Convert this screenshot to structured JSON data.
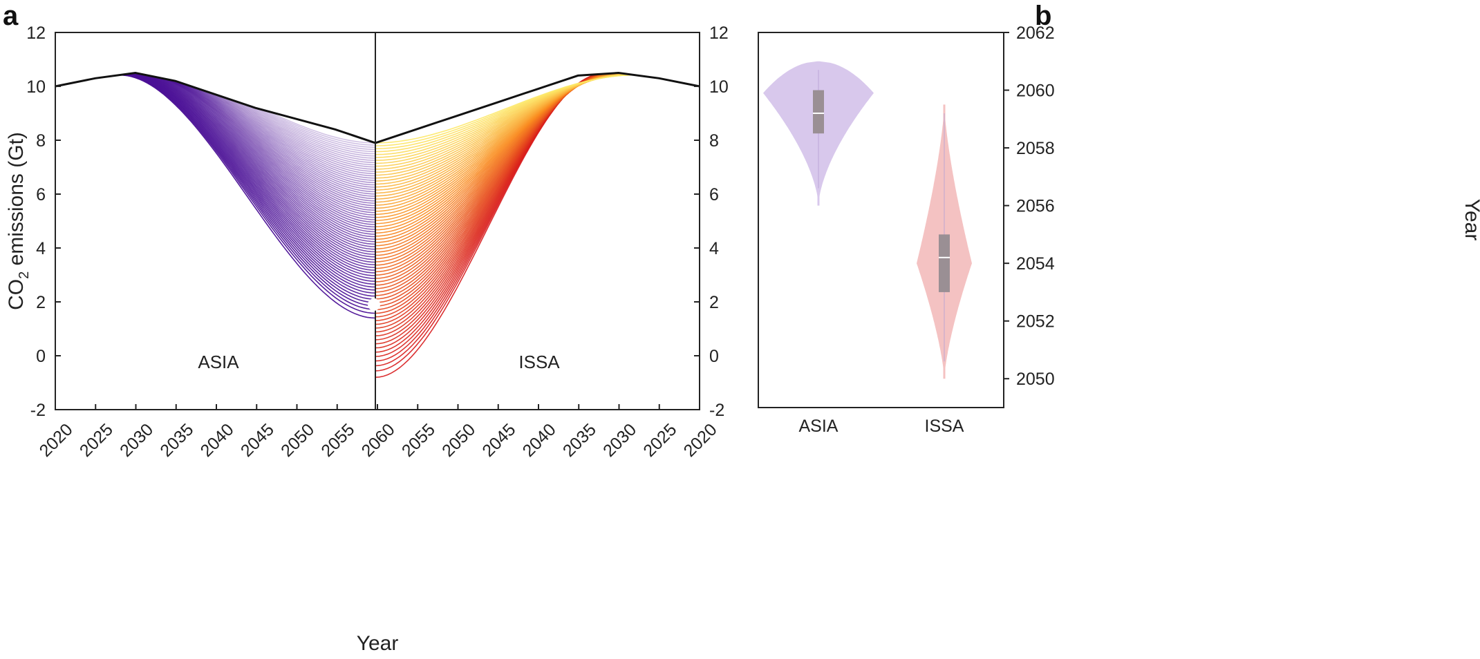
{
  "chart_data": [
    {
      "panel": "a",
      "type": "line",
      "ylabel": "CO2 emissions (Gt)",
      "ylabel_main": "CO",
      "ylabel_sub": "2",
      "ylabel_tail": " emissions (Gt)",
      "xlabel": "Year",
      "ylim": [
        -2,
        12
      ],
      "yticks": [
        "-2",
        "0",
        "2",
        "4",
        "6",
        "8",
        "10",
        "12"
      ],
      "xticks": [
        "2020",
        "2025",
        "2030",
        "2035",
        "2040",
        "2045",
        "2050",
        "2055",
        "2060",
        "2055",
        "2050",
        "2045",
        "2040",
        "2035",
        "2030",
        "2025",
        "2020"
      ],
      "left_region": {
        "label": "ASIA",
        "color": "#4b1096",
        "baseline": {
          "x": [
            2020,
            2025,
            2030,
            2035,
            2040,
            2045,
            2050,
            2055,
            2060
          ],
          "y": [
            10.0,
            10.3,
            10.5,
            10.2,
            9.7,
            9.2,
            8.8,
            8.4,
            7.9
          ]
        },
        "scenario_range_2060": [
          1.4,
          7.9
        ],
        "peak_year_range": [
          2028,
          2032
        ],
        "marker": {
          "x": 2060,
          "y": 1.9
        }
      },
      "right_region": {
        "label": "ISSA",
        "color": "#d7191c",
        "gradient_colors": [
          "#d7191c",
          "#f98b1f",
          "#fde867"
        ],
        "baseline": {
          "x": [
            2060,
            2055,
            2050,
            2045,
            2040,
            2035,
            2030,
            2025,
            2020
          ],
          "y": [
            7.9,
            8.4,
            8.9,
            9.4,
            9.9,
            10.4,
            10.5,
            10.3,
            10.0
          ]
        },
        "scenario_range_2060": [
          -0.8,
          7.9
        ],
        "peak_year_range": [
          2028,
          2032
        ]
      }
    },
    {
      "panel": "b",
      "type": "violin",
      "ylabel": "Year",
      "ylim": [
        2049,
        2062
      ],
      "yticks": [
        "2050",
        "2052",
        "2054",
        "2056",
        "2058",
        "2060",
        "2062"
      ],
      "categories": [
        "ASIA",
        "ISSA"
      ],
      "series": [
        {
          "category": "ASIA",
          "color": "#d8c8ec",
          "min": 2056.0,
          "max": 2061.0,
          "q1": 2058.5,
          "median": 2059.2,
          "q3": 2060.0
        },
        {
          "category": "ISSA",
          "color": "#f4c2c2",
          "min": 2050.0,
          "max": 2059.5,
          "q1": 2053.0,
          "median": 2054.2,
          "q3": 2055.0
        }
      ]
    }
  ]
}
